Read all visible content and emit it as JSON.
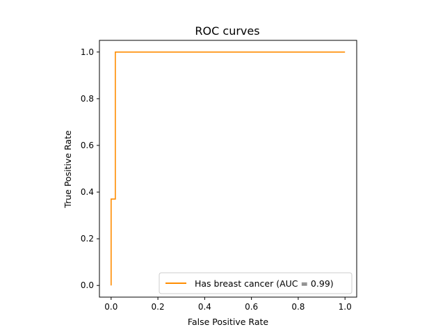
{
  "chart_data": {
    "type": "line",
    "title": "ROC curves",
    "xlabel": "False Positive Rate",
    "ylabel": "True Positive Rate",
    "xlim": [
      -0.05,
      1.05
    ],
    "ylim": [
      -0.05,
      1.05
    ],
    "x_ticks": [
      "0.0",
      "0.2",
      "0.4",
      "0.6",
      "0.8",
      "1.0"
    ],
    "y_ticks": [
      "0.0",
      "0.2",
      "0.4",
      "0.6",
      "0.8",
      "1.0"
    ],
    "grid": false,
    "legend_position": "lower right",
    "series": [
      {
        "name": "Has breast cancer (AUC = 0.99)",
        "color": "#ff8c00",
        "step": true,
        "x": [
          0.0,
          0.0,
          0.0,
          0.018,
          0.018,
          1.0
        ],
        "y": [
          0.0,
          0.37,
          0.37,
          0.37,
          1.0,
          1.0
        ]
      }
    ]
  }
}
